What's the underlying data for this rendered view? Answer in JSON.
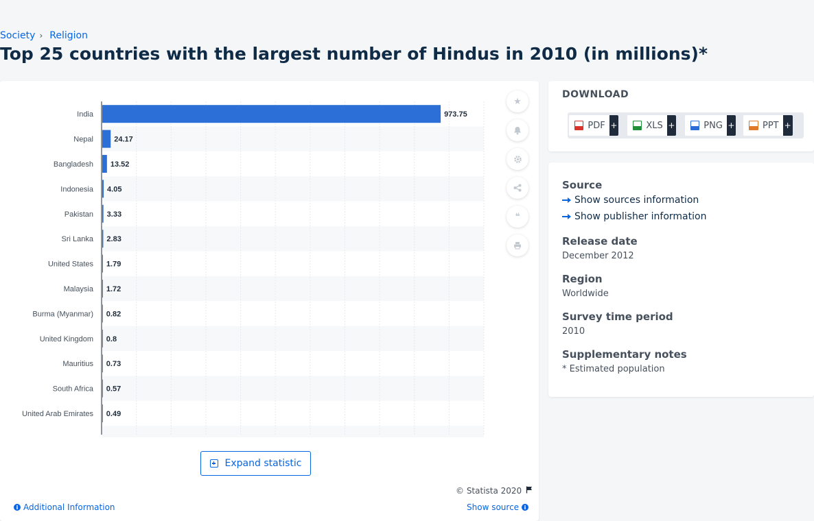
{
  "breadcrumb": {
    "items": [
      "Society",
      "Religion"
    ],
    "separator": "›"
  },
  "page_title": "Top 25 countries with the largest number of Hindus in 2010 (in millions)*",
  "toolbar": {
    "icons": [
      "star-icon",
      "bell-icon",
      "gear-icon",
      "share-icon",
      "quote-icon",
      "print-icon"
    ]
  },
  "chart_actions": {
    "expand_label": "Expand statistic",
    "copyright": "© Statista 2020",
    "additional_info": "Additional Information",
    "show_source": "Show source"
  },
  "download": {
    "title": "DOWNLOAD",
    "buttons": [
      {
        "label": "PDF",
        "color": "#d9342b"
      },
      {
        "label": "XLS",
        "color": "#1f8f3a"
      },
      {
        "label": "PNG",
        "color": "#2b6cd9"
      },
      {
        "label": "PPT",
        "color": "#e07a2b"
      }
    ],
    "plus": "+"
  },
  "meta": {
    "source_label": "Source",
    "sources_link": "Show sources information",
    "publisher_link": "Show publisher information",
    "release_label": "Release date",
    "release_value": "December 2012",
    "region_label": "Region",
    "region_value": "Worldwide",
    "survey_label": "Survey time period",
    "survey_value": "2010",
    "notes_label": "Supplementary notes",
    "notes_value": "* Estimated population"
  },
  "colors": {
    "bar": "#2c6fd6",
    "accent": "#0666e5",
    "title": "#0f2b46"
  },
  "chart_data": {
    "type": "bar",
    "orientation": "horizontal",
    "categories": [
      "India",
      "Nepal",
      "Bangladesh",
      "Indonesia",
      "Pakistan",
      "Sri Lanka",
      "United States",
      "Malaysia",
      "Burma (Myanmar)",
      "United Kingdom",
      "Mauritius",
      "South Africa",
      "United Arab Emirates"
    ],
    "values": [
      973.75,
      24.17,
      13.52,
      4.05,
      3.33,
      2.83,
      1.79,
      1.72,
      0.82,
      0.8,
      0.73,
      0.57,
      0.49
    ],
    "value_labels": [
      "973.75",
      "24.17",
      "13.52",
      "4.05",
      "3.33",
      "2.83",
      "1.79",
      "1.72",
      "0.82",
      "0.8",
      "0.73",
      "0.57",
      "0.49"
    ],
    "xlim": [
      0,
      1100
    ],
    "grid": true,
    "title": "",
    "xlabel": "",
    "ylabel": ""
  }
}
